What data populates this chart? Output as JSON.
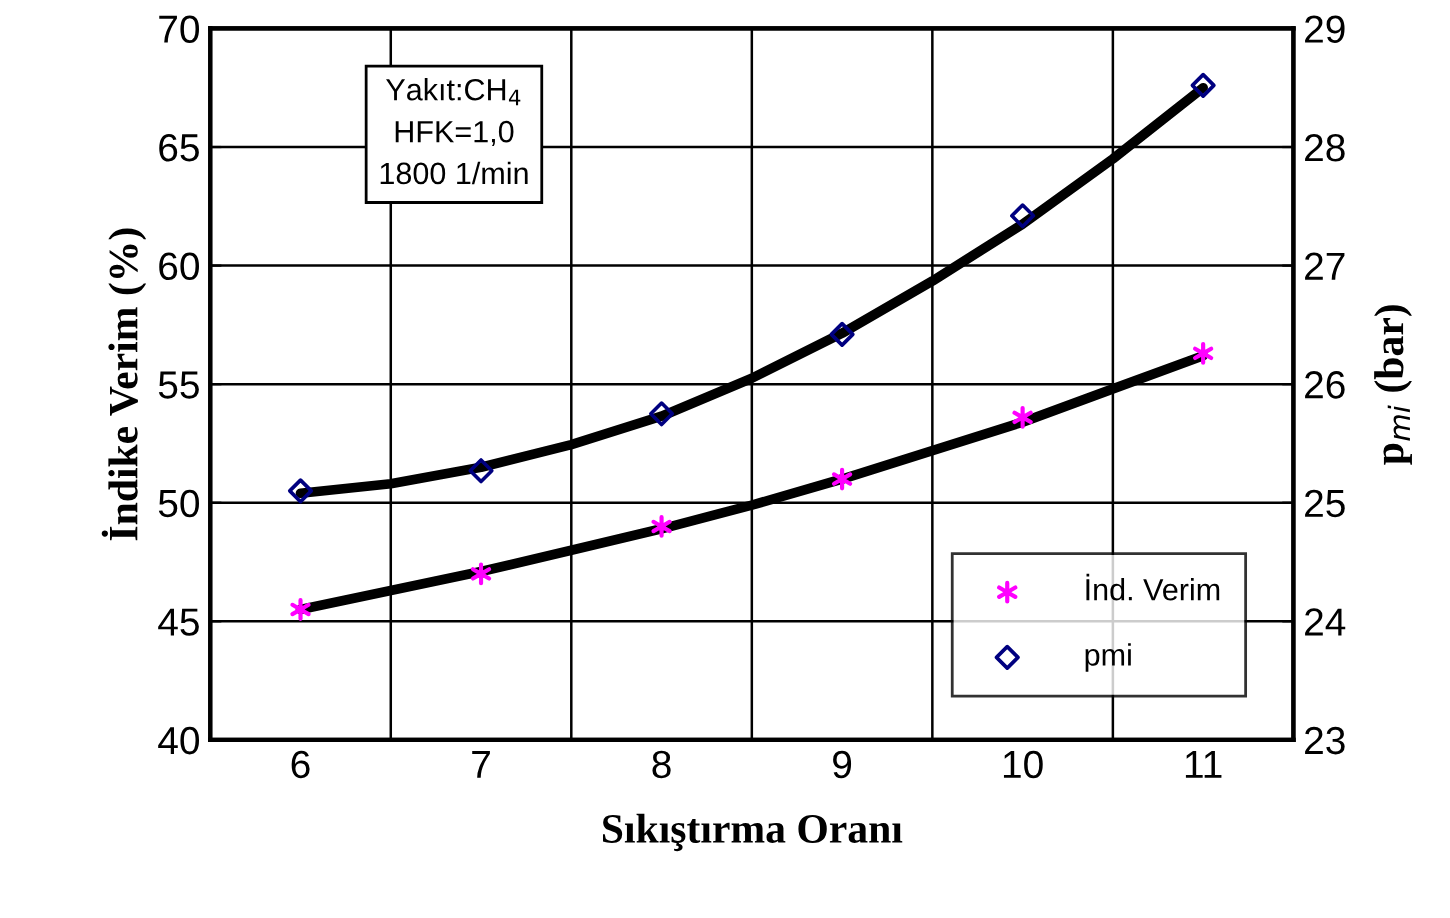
{
  "chart_data": {
    "type": "scatter",
    "xlabel": "Sıkıştırma Oranı",
    "ylabel": "İndike Verim (%)",
    "y2label": "p$_{mi}$ (bar)",
    "x": [
      6,
      7,
      8,
      9,
      10,
      11
    ],
    "xlim": [
      5.5,
      11.5
    ],
    "xticks": [
      6,
      7,
      8,
      9,
      10,
      11
    ],
    "series": [
      {
        "name": "İnd. Verim",
        "color": "#ff00ff",
        "marker": "cross",
        "values": [
          45.5,
          47.0,
          49.0,
          51.0,
          53.6,
          56.3
        ]
      },
      {
        "name": "pmi",
        "color": "#000080",
        "marker": "diamond",
        "axis": "y2",
        "values": [
          25.1,
          25.27,
          25.75,
          26.42,
          27.42,
          28.52
        ]
      },
      {
        "type": "line",
        "color": "#000000",
        "x": [
          6,
          6.5,
          7,
          7.5,
          8,
          8.5,
          9,
          9.5,
          10,
          10.5,
          11
        ],
        "values": [
          45.5,
          46.3,
          47.1,
          48.0,
          48.9,
          49.9,
          51.0,
          52.2,
          53.4,
          54.8,
          56.2
        ]
      },
      {
        "type": "line",
        "color": "#000000",
        "axis": "y2",
        "x": [
          6,
          6.5,
          7,
          7.5,
          8,
          8.5,
          9,
          9.5,
          10,
          10.5,
          11
        ],
        "values": [
          25.08,
          25.16,
          25.3,
          25.49,
          25.73,
          26.05,
          26.43,
          26.87,
          27.35,
          27.9,
          28.5
        ]
      }
    ],
    "ylim": [
      40,
      70
    ],
    "yticks": [
      40,
      45,
      50,
      55,
      60,
      65,
      70
    ],
    "y2lim": [
      23,
      29
    ],
    "y2ticks": [
      23,
      24,
      25,
      26,
      27,
      28,
      29
    ],
    "grid": true,
    "legend": "bottom right",
    "annotations": [
      "Yakıt:CH$_{4}$\nHFK=1,0\n1800 1/min"
    ]
  }
}
